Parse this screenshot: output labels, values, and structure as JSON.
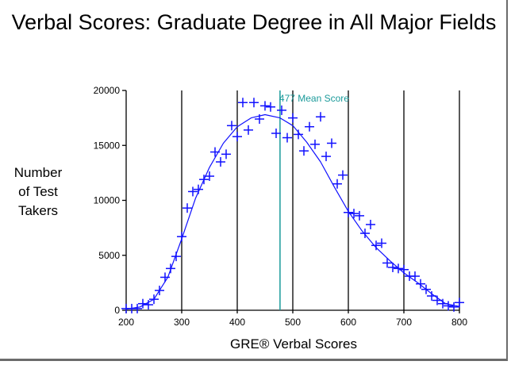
{
  "chart_data": {
    "type": "scatter",
    "title": "Verbal Scores: Graduate Degree in All Major Fields",
    "xlabel": "GRE® Verbal Scores",
    "ylabel": "Number of Test Takers",
    "xlim": [
      200,
      800
    ],
    "ylim": [
      0,
      20000
    ],
    "x_ticks": [
      200,
      300,
      400,
      500,
      600,
      700,
      800
    ],
    "y_ticks": [
      0,
      5000,
      10000,
      15000,
      20000
    ],
    "grid": "vertical lines at 300, 400, 500, 600, 700, 800",
    "annotation": {
      "x": 477,
      "label": "477 Mean Score",
      "color": "#1a9a9a"
    },
    "series": [
      {
        "name": "Observed counts",
        "marker": "+",
        "color": "#1010ff",
        "points": [
          [
            200,
            150
          ],
          [
            210,
            150
          ],
          [
            220,
            150
          ],
          [
            230,
            600
          ],
          [
            240,
            500
          ],
          [
            250,
            1000
          ],
          [
            260,
            1800
          ],
          [
            270,
            3000
          ],
          [
            280,
            3800
          ],
          [
            290,
            4900
          ],
          [
            300,
            6700
          ],
          [
            310,
            9300
          ],
          [
            320,
            10800
          ],
          [
            330,
            11000
          ],
          [
            340,
            11900
          ],
          [
            350,
            12200
          ],
          [
            360,
            14400
          ],
          [
            370,
            13500
          ],
          [
            380,
            14200
          ],
          [
            390,
            16800
          ],
          [
            400,
            15800
          ],
          [
            410,
            18900
          ],
          [
            420,
            16400
          ],
          [
            430,
            18900
          ],
          [
            440,
            17400
          ],
          [
            450,
            18600
          ],
          [
            460,
            18500
          ],
          [
            470,
            16100
          ],
          [
            480,
            18200
          ],
          [
            490,
            15700
          ],
          [
            500,
            17500
          ],
          [
            510,
            16000
          ],
          [
            520,
            14500
          ],
          [
            530,
            16700
          ],
          [
            540,
            15100
          ],
          [
            550,
            17600
          ],
          [
            560,
            14000
          ],
          [
            570,
            15200
          ],
          [
            580,
            11500
          ],
          [
            590,
            12300
          ],
          [
            600,
            8900
          ],
          [
            610,
            8800
          ],
          [
            620,
            8600
          ],
          [
            630,
            7000
          ],
          [
            640,
            7800
          ],
          [
            650,
            5900
          ],
          [
            660,
            6100
          ],
          [
            670,
            4300
          ],
          [
            680,
            3900
          ],
          [
            690,
            3800
          ],
          [
            700,
            3700
          ],
          [
            710,
            3100
          ],
          [
            720,
            3100
          ],
          [
            730,
            2400
          ],
          [
            740,
            1900
          ],
          [
            750,
            1300
          ],
          [
            760,
            900
          ],
          [
            770,
            600
          ],
          [
            780,
            400
          ],
          [
            790,
            300
          ],
          [
            800,
            700
          ]
        ]
      },
      {
        "name": "Fitted curve",
        "type": "line",
        "color": "#1010ff",
        "points": [
          [
            200,
            100
          ],
          [
            225,
            300
          ],
          [
            250,
            1000
          ],
          [
            275,
            3000
          ],
          [
            300,
            6500
          ],
          [
            325,
            10200
          ],
          [
            350,
            13000
          ],
          [
            375,
            15200
          ],
          [
            400,
            16700
          ],
          [
            425,
            17500
          ],
          [
            450,
            17800
          ],
          [
            477,
            17500
          ],
          [
            500,
            16800
          ],
          [
            525,
            15300
          ],
          [
            550,
            13500
          ],
          [
            575,
            11200
          ],
          [
            600,
            9000
          ],
          [
            625,
            7200
          ],
          [
            650,
            5700
          ],
          [
            675,
            4500
          ],
          [
            700,
            3400
          ],
          [
            725,
            2500
          ],
          [
            750,
            1500
          ],
          [
            775,
            600
          ],
          [
            800,
            350
          ]
        ]
      }
    ]
  },
  "labels": {
    "title": "Verbal Scores: Graduate Degree in All Major Fields",
    "ylabel_lines": [
      "Number",
      "of Test",
      "Takers"
    ],
    "xlabel": "GRE® Verbal Scores",
    "mean_label": "477 Mean Score",
    "x_tick_labels": [
      "200",
      "300",
      "400",
      "500",
      "600",
      "700",
      "800"
    ],
    "y_tick_labels": [
      "0",
      "5000",
      "10000",
      "15000",
      "20000"
    ]
  }
}
